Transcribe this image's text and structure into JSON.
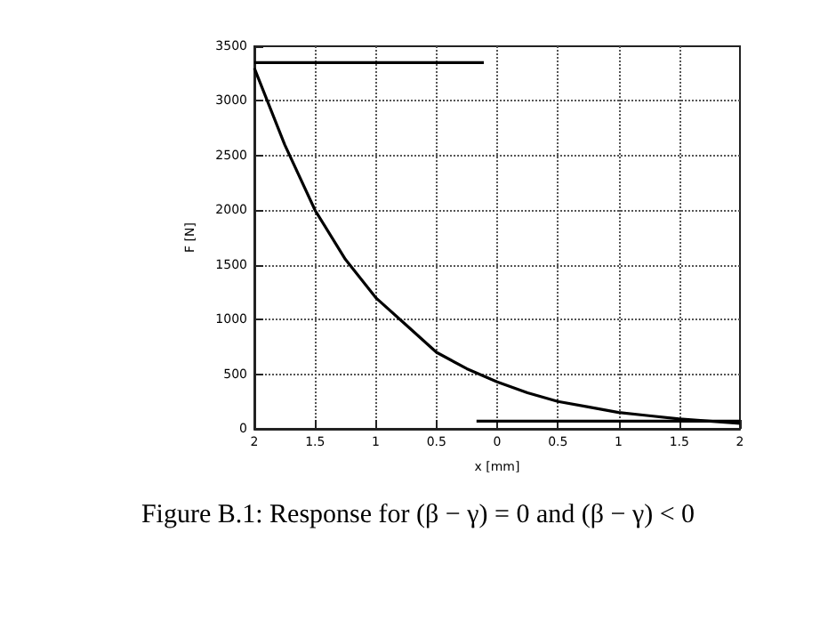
{
  "chart_data": {
    "type": "line",
    "xlabel": "x [mm]",
    "ylabel": "F [N]",
    "annotations": [
      "Figure B.1: Response for (β − γ) = 0 and (β − γ) < 0"
    ],
    "xlim": [
      -2,
      2
    ],
    "xticks": [
      {
        "value": -2,
        "label": "2"
      },
      {
        "value": -1.5,
        "label": "1.5"
      },
      {
        "value": -1,
        "label": "1"
      },
      {
        "value": -0.5,
        "label": "0.5"
      },
      0,
      0.5,
      1,
      1.5,
      2
    ],
    "ylim": [
      0,
      3500
    ],
    "yticks": [
      0,
      500,
      1000,
      1500,
      2000,
      2500,
      3000,
      3500
    ],
    "grid": true,
    "marker": "none",
    "line_style": "solid",
    "series": [
      {
        "color": "#000000",
        "x": [
          -2,
          -0.11
        ],
        "values": [
          3350,
          3350
        ]
      },
      {
        "color": "#000000",
        "x": [
          -2,
          -1.75,
          -1.5,
          -1.25,
          -1,
          -0.75,
          -0.5,
          -0.25,
          0,
          0.25,
          0.5,
          0.75,
          1,
          1.25,
          1.5,
          1.75,
          2
        ],
        "values": [
          3300,
          2600,
          2000,
          1550,
          1200,
          950,
          700,
          550,
          430,
          330,
          250,
          200,
          150,
          120,
          90,
          70,
          50
        ]
      },
      {
        "color": "#000000",
        "x": [
          -0.17,
          2
        ],
        "values": [
          70,
          70
        ]
      }
    ]
  }
}
